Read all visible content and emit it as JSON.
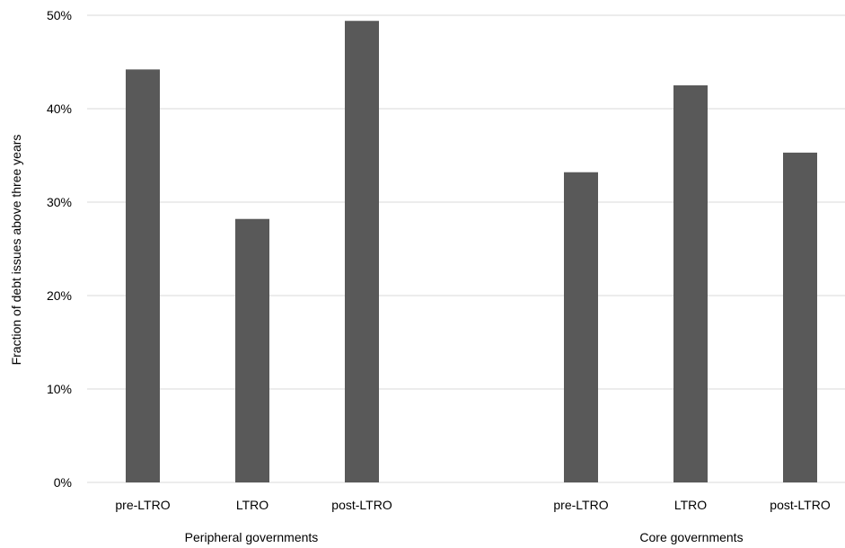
{
  "chart_data": {
    "type": "bar",
    "title": "",
    "xlabel": "",
    "ylabel": "Fraction of debt issues above three years",
    "ylim": [
      0,
      50
    ],
    "yticks": [
      0,
      10,
      20,
      30,
      40,
      50
    ],
    "ytick_labels": [
      "0%",
      "10%",
      "20%",
      "30%",
      "40%",
      "50%"
    ],
    "grid": true,
    "legend": "none",
    "bar_color": "#595959",
    "groups": [
      {
        "name": "Peripheral governments",
        "categories": [
          "pre-LTRO",
          "LTRO",
          "post-LTRO"
        ],
        "values": [
          44.2,
          28.2,
          49.4
        ]
      },
      {
        "name": "Core governments",
        "categories": [
          "pre-LTRO",
          "LTRO",
          "post-LTRO"
        ],
        "values": [
          33.2,
          42.5,
          35.3
        ]
      }
    ]
  }
}
